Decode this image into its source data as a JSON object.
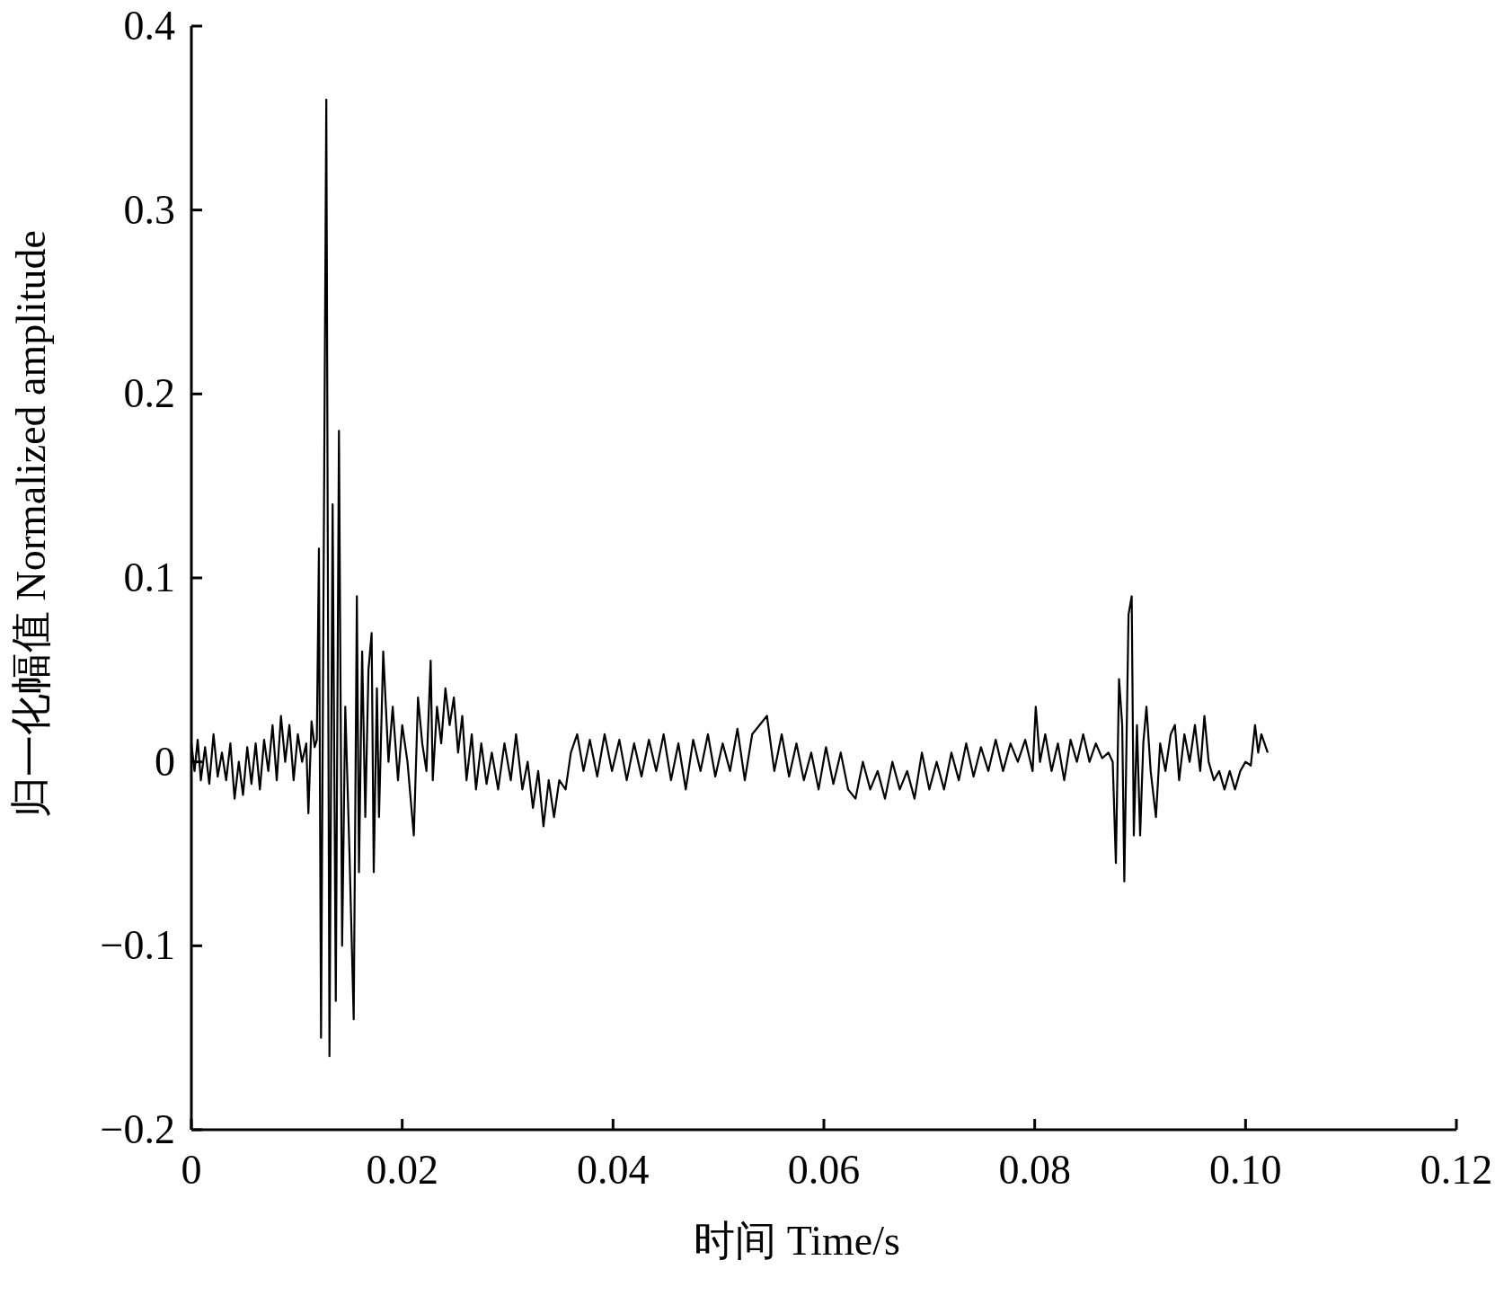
{
  "chart_data": {
    "type": "line",
    "xlabel": "时间 Time/s",
    "ylabel": "归一化幅值 Normalized amplitude",
    "xlim": [
      0,
      0.12
    ],
    "ylim": [
      -0.2,
      0.4
    ],
    "xticks": [
      0,
      0.02,
      0.04,
      0.06,
      0.08,
      {
        "value": 0.1,
        "label": "0.10"
      },
      0.12
    ],
    "yticks": [
      {
        "value": -0.2,
        "label": "−0.2"
      },
      {
        "value": -0.1,
        "label": "−0.1"
      },
      0,
      0.1,
      0.2,
      0.3,
      0.4
    ],
    "grid": false,
    "marker": "none",
    "line_style": "solid",
    "series": [
      {
        "color": "#000000",
        "x": [
          0.0,
          0.0003,
          0.0006,
          0.0009,
          0.0013,
          0.0017,
          0.0021,
          0.0025,
          0.0029,
          0.0033,
          0.0037,
          0.0041,
          0.0045,
          0.0049,
          0.0053,
          0.0057,
          0.0061,
          0.0065,
          0.0069,
          0.0073,
          0.0077,
          0.0081,
          0.0085,
          0.0089,
          0.0093,
          0.0097,
          0.0101,
          0.0105,
          0.0109,
          0.0111,
          0.0114,
          0.0117,
          0.0119,
          0.0121,
          0.0123,
          0.0128,
          0.0131,
          0.0134,
          0.0137,
          0.014,
          0.0143,
          0.0146,
          0.015,
          0.0154,
          0.0157,
          0.0159,
          0.0162,
          0.0165,
          0.0168,
          0.0171,
          0.0173,
          0.0176,
          0.0178,
          0.0182,
          0.0187,
          0.0191,
          0.0196,
          0.02,
          0.0205,
          0.0211,
          0.0215,
          0.0219,
          0.0223,
          0.0227,
          0.0229,
          0.0233,
          0.0237,
          0.0241,
          0.0245,
          0.0249,
          0.0253,
          0.0257,
          0.0261,
          0.0266,
          0.027,
          0.0275,
          0.028,
          0.0285,
          0.0291,
          0.0297,
          0.0303,
          0.0308,
          0.0314,
          0.0319,
          0.0324,
          0.0329,
          0.0334,
          0.0339,
          0.0344,
          0.0349,
          0.0355,
          0.036,
          0.0366,
          0.0372,
          0.0378,
          0.0385,
          0.0392,
          0.0399,
          0.0406,
          0.0413,
          0.042,
          0.0427,
          0.0434,
          0.0441,
          0.0448,
          0.0455,
          0.0462,
          0.0469,
          0.0476,
          0.0483,
          0.049,
          0.0497,
          0.0504,
          0.0511,
          0.0518,
          0.0525,
          0.0532,
          0.0539,
          0.0546,
          0.0553,
          0.056,
          0.0567,
          0.0574,
          0.0581,
          0.0588,
          0.0595,
          0.0602,
          0.0609,
          0.0616,
          0.0623,
          0.063,
          0.0637,
          0.0644,
          0.0651,
          0.0658,
          0.0665,
          0.0672,
          0.0679,
          0.0686,
          0.0693,
          0.07,
          0.0707,
          0.0714,
          0.0721,
          0.0728,
          0.0735,
          0.0742,
          0.0749,
          0.0756,
          0.0763,
          0.077,
          0.0777,
          0.0784,
          0.0791,
          0.0798,
          0.0801,
          0.0805,
          0.081,
          0.0816,
          0.0822,
          0.0828,
          0.0834,
          0.084,
          0.0846,
          0.0852,
          0.0858,
          0.0864,
          0.087,
          0.0874,
          0.0877,
          0.088,
          0.0883,
          0.0885,
          0.0889,
          0.0892,
          0.0894,
          0.0897,
          0.09,
          0.0903,
          0.0906,
          0.091,
          0.0915,
          0.0919,
          0.0924,
          0.0929,
          0.0933,
          0.0937,
          0.0942,
          0.0947,
          0.0952,
          0.0957,
          0.0961,
          0.0965,
          0.097,
          0.0975,
          0.098,
          0.0985,
          0.099,
          0.0995,
          0.1,
          0.1005,
          0.1009,
          0.1012,
          0.1015,
          0.1018,
          0.1021
        ],
        "values": [
          0.01,
          -0.005,
          0.012,
          -0.01,
          0.008,
          -0.012,
          0.015,
          -0.008,
          0.005,
          -0.01,
          0.01,
          -0.02,
          0.0,
          -0.018,
          0.008,
          -0.012,
          0.01,
          -0.015,
          0.012,
          -0.005,
          0.02,
          -0.01,
          0.025,
          0.0,
          0.02,
          -0.01,
          0.015,
          0.0,
          0.01,
          -0.028,
          0.022,
          0.008,
          0.012,
          0.116,
          -0.15,
          0.36,
          -0.16,
          0.14,
          -0.13,
          0.18,
          -0.1,
          0.03,
          -0.05,
          -0.14,
          0.09,
          -0.06,
          0.06,
          -0.03,
          0.05,
          0.07,
          -0.06,
          0.04,
          -0.03,
          0.06,
          0.0,
          0.03,
          -0.01,
          0.02,
          0.0,
          -0.04,
          0.035,
          0.01,
          -0.005,
          0.055,
          -0.01,
          0.03,
          0.01,
          0.04,
          0.02,
          0.035,
          0.005,
          0.025,
          -0.01,
          0.015,
          -0.015,
          0.01,
          -0.012,
          0.005,
          -0.015,
          0.01,
          -0.01,
          0.015,
          -0.015,
          0.0,
          -0.025,
          -0.005,
          -0.035,
          -0.01,
          -0.03,
          -0.01,
          -0.015,
          0.005,
          0.015,
          -0.005,
          0.012,
          -0.008,
          0.015,
          -0.005,
          0.012,
          -0.01,
          0.01,
          -0.008,
          0.012,
          -0.005,
          0.015,
          -0.01,
          0.01,
          -0.015,
          0.012,
          -0.005,
          0.015,
          -0.008,
          0.01,
          -0.005,
          0.018,
          -0.01,
          0.015,
          0.02,
          0.025,
          -0.005,
          0.015,
          -0.008,
          0.01,
          -0.01,
          0.005,
          -0.015,
          0.008,
          -0.012,
          0.005,
          -0.015,
          -0.02,
          0.0,
          -0.015,
          -0.005,
          -0.02,
          0.0,
          -0.015,
          -0.005,
          -0.02,
          0.005,
          -0.015,
          0.0,
          -0.015,
          0.005,
          -0.01,
          0.01,
          -0.008,
          0.008,
          -0.005,
          0.012,
          -0.005,
          0.01,
          0.0,
          0.012,
          -0.005,
          0.03,
          0.0,
          0.015,
          -0.005,
          0.01,
          -0.01,
          0.012,
          0.0,
          0.015,
          0.0,
          0.01,
          0.002,
          0.005,
          0.0,
          -0.055,
          0.045,
          0.02,
          -0.065,
          0.08,
          0.09,
          -0.04,
          0.02,
          -0.04,
          0.01,
          0.03,
          -0.005,
          -0.03,
          0.01,
          -0.005,
          0.015,
          0.02,
          -0.01,
          0.015,
          0.0,
          0.02,
          -0.005,
          0.025,
          0.0,
          -0.01,
          -0.005,
          -0.015,
          -0.005,
          -0.015,
          -0.005,
          0.0,
          -0.002,
          0.02,
          0.005,
          0.015,
          0.01,
          0.005
        ]
      }
    ]
  }
}
